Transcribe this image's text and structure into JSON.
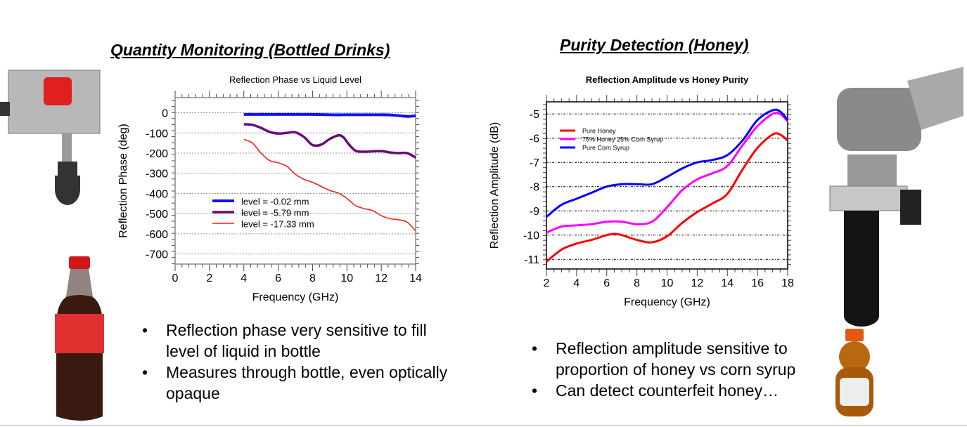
{
  "left": {
    "heading": "Quantity Monitoring (Bottled Drinks)",
    "bullets": [
      "Reflection phase very sensitive to fill level of liquid in bottle",
      "Measures through bottle, even optically opaque"
    ]
  },
  "right": {
    "heading": "Purity Detection (Honey)",
    "bullets": [
      "Reflection amplitude sensitive to proportion of honey vs corn syrup",
      "Can detect counterfeit honey…"
    ]
  },
  "chart_data": [
    {
      "type": "line",
      "title": "Reflection Phase vs Liquid Level",
      "xlabel": "Frequency (GHz)",
      "ylabel": "Reflection Phase (deg)",
      "xlim": [
        0,
        14
      ],
      "ylim": [
        -750,
        75
      ],
      "xticks": [
        0,
        2,
        4,
        6,
        8,
        10,
        12,
        14
      ],
      "yticks": [
        0,
        -100,
        -200,
        -300,
        -400,
        -500,
        -600,
        -700
      ],
      "grid": "horizontal dotted",
      "legend": "center-left",
      "series": [
        {
          "name": "level = -0.02 mm",
          "color": "#1010ff",
          "width": 4,
          "points": [
            [
              4,
              -8
            ],
            [
              6,
              -8
            ],
            [
              8,
              -8
            ],
            [
              9,
              -10
            ],
            [
              10,
              -10
            ],
            [
              12,
              -10
            ],
            [
              12.7,
              -12
            ],
            [
              13.2,
              -16
            ],
            [
              13.6,
              -18
            ],
            [
              14,
              -15
            ]
          ]
        },
        {
          "name": "level = -5.79 mm",
          "color": "#6a0a7a",
          "width": 3.5,
          "points": [
            [
              4,
              -57
            ],
            [
              4.5,
              -60
            ],
            [
              5,
              -75
            ],
            [
              5.5,
              -95
            ],
            [
              6,
              -103
            ],
            [
              6.5,
              -100
            ],
            [
              7,
              -97
            ],
            [
              7.5,
              -120
            ],
            [
              8,
              -160
            ],
            [
              8.5,
              -158
            ],
            [
              9,
              -130
            ],
            [
              9.5,
              -112
            ],
            [
              9.8,
              -122
            ],
            [
              10.1,
              -155
            ],
            [
              10.5,
              -188
            ],
            [
              11,
              -193
            ],
            [
              12,
              -190
            ],
            [
              12.5,
              -197
            ],
            [
              13,
              -200
            ],
            [
              13.5,
              -200
            ],
            [
              14,
              -222
            ]
          ]
        },
        {
          "name": "level = -17.33 mm",
          "color": "#ff1a1a",
          "width": 1.6,
          "points": [
            [
              4,
              -132
            ],
            [
              4.5,
              -150
            ],
            [
              5,
              -200
            ],
            [
              5.5,
              -237
            ],
            [
              6,
              -248
            ],
            [
              6.5,
              -265
            ],
            [
              7,
              -305
            ],
            [
              7.5,
              -330
            ],
            [
              8,
              -345
            ],
            [
              9,
              -385
            ],
            [
              9.5,
              -398
            ],
            [
              10,
              -425
            ],
            [
              10.5,
              -460
            ],
            [
              11,
              -475
            ],
            [
              11.5,
              -485
            ],
            [
              12,
              -510
            ],
            [
              12.5,
              -525
            ],
            [
              13,
              -530
            ],
            [
              13.5,
              -542
            ],
            [
              14,
              -585
            ]
          ]
        }
      ]
    },
    {
      "type": "line",
      "title": "Reflection Amplitude vs Honey Purity",
      "xlabel": "Frequency (GHz)",
      "ylabel": "Reflection Amplitude (dB)",
      "xlim": [
        2,
        18
      ],
      "ylim": [
        -11.4,
        -4.5
      ],
      "xticks": [
        2,
        4,
        6,
        8,
        10,
        12,
        14,
        16,
        18
      ],
      "yticks": [
        -5,
        -6,
        -7,
        -8,
        -9,
        -10,
        -11
      ],
      "grid": "horizontal dotted",
      "legend": "top-left",
      "series": [
        {
          "name": "Pure Honey",
          "color": "#ff0000",
          "width": 3,
          "points": [
            [
              2,
              -11.1
            ],
            [
              3,
              -10.6
            ],
            [
              4,
              -10.35
            ],
            [
              5,
              -10.2
            ],
            [
              6,
              -10.0
            ],
            [
              6.5,
              -9.95
            ],
            [
              7,
              -10.0
            ],
            [
              8,
              -10.2
            ],
            [
              9,
              -10.3
            ],
            [
              10,
              -10.05
            ],
            [
              11,
              -9.5
            ],
            [
              12,
              -9.05
            ],
            [
              13,
              -8.7
            ],
            [
              14,
              -8.3
            ],
            [
              15,
              -7.3
            ],
            [
              16,
              -6.4
            ],
            [
              17,
              -5.85
            ],
            [
              17.5,
              -5.85
            ],
            [
              18,
              -6.1
            ]
          ]
        },
        {
          "name": "75% Honey 25% Corn Syrup",
          "color": "#ff00ff",
          "width": 3,
          "points": [
            [
              2,
              -9.9
            ],
            [
              3,
              -9.65
            ],
            [
              4,
              -9.6
            ],
            [
              5,
              -9.55
            ],
            [
              6,
              -9.45
            ],
            [
              7,
              -9.45
            ],
            [
              8,
              -9.55
            ],
            [
              9,
              -9.45
            ],
            [
              10,
              -8.85
            ],
            [
              11,
              -8.15
            ],
            [
              12,
              -7.7
            ],
            [
              13,
              -7.45
            ],
            [
              14,
              -7.15
            ],
            [
              15,
              -6.3
            ],
            [
              16,
              -5.5
            ],
            [
              17,
              -5.0
            ],
            [
              17.5,
              -5.0
            ],
            [
              18,
              -5.3
            ]
          ]
        },
        {
          "name": "Pure Corn Syrup",
          "color": "#0000ff",
          "width": 3,
          "points": [
            [
              2,
              -9.25
            ],
            [
              3,
              -8.75
            ],
            [
              4,
              -8.5
            ],
            [
              5,
              -8.25
            ],
            [
              6,
              -8.0
            ],
            [
              7,
              -7.9
            ],
            [
              8,
              -7.9
            ],
            [
              9,
              -7.9
            ],
            [
              10,
              -7.6
            ],
            [
              11,
              -7.25
            ],
            [
              12,
              -7.0
            ],
            [
              13,
              -6.9
            ],
            [
              14,
              -6.7
            ],
            [
              15,
              -6.1
            ],
            [
              16,
              -5.25
            ],
            [
              17,
              -4.85
            ],
            [
              17.5,
              -4.9
            ],
            [
              18,
              -5.25
            ]
          ]
        }
      ]
    }
  ]
}
